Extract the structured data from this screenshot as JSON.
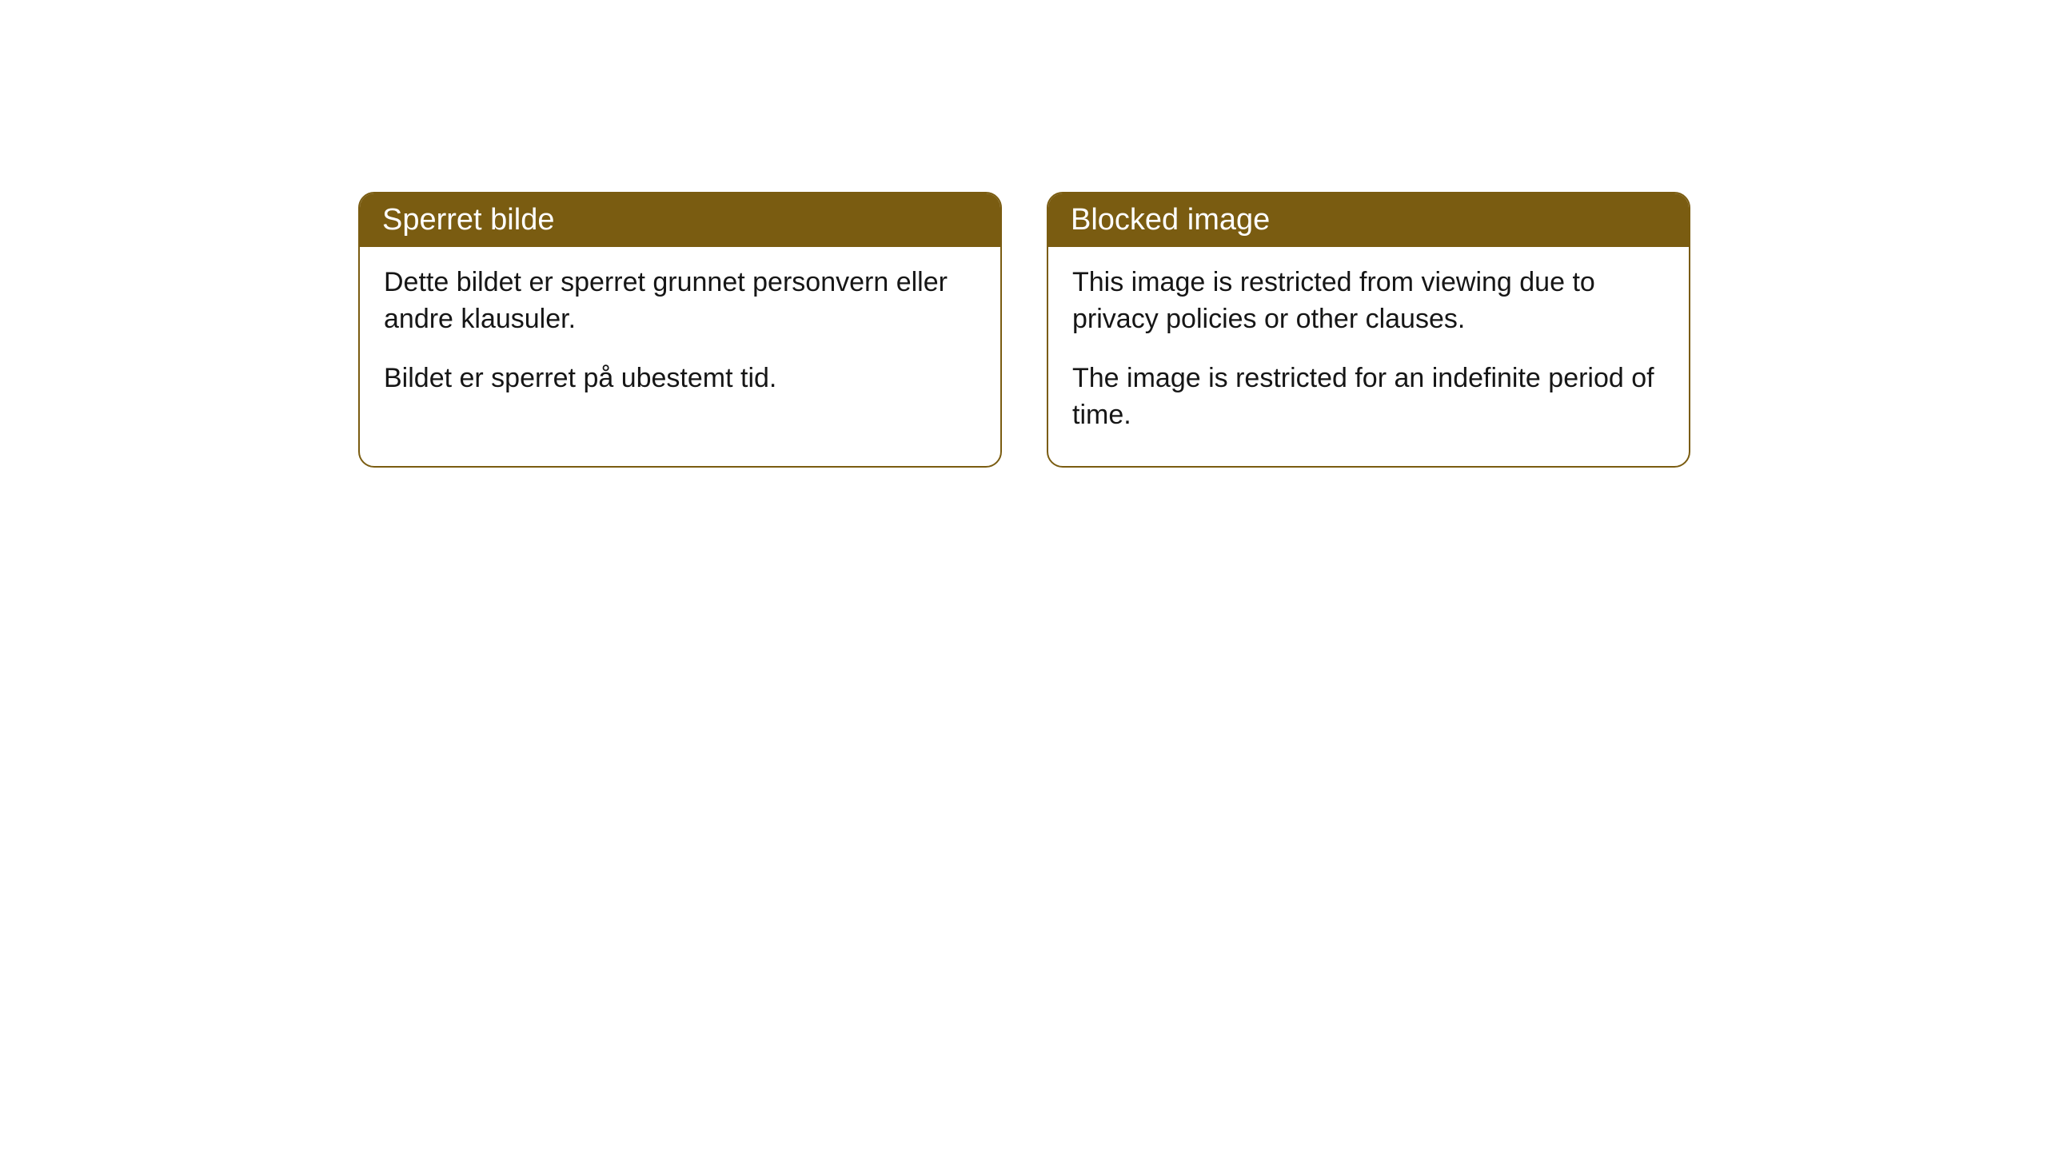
{
  "cards": [
    {
      "title": "Sperret bilde",
      "paragraph1": "Dette bildet er sperret grunnet personvern eller andre klausuler.",
      "paragraph2": "Bildet er sperret på ubestemt tid."
    },
    {
      "title": "Blocked image",
      "paragraph1": "This image is restricted from viewing due to privacy policies or other clauses.",
      "paragraph2": "The image is restricted for an indefinite period of time."
    }
  ],
  "styling": {
    "header_background": "#7a5c11",
    "header_text_color": "#ffffff",
    "card_border_color": "#7a5c11",
    "card_background": "#ffffff",
    "body_text_color": "#161616",
    "page_background": "#ffffff",
    "border_radius": 20,
    "header_fontsize": 38,
    "body_fontsize": 34
  }
}
